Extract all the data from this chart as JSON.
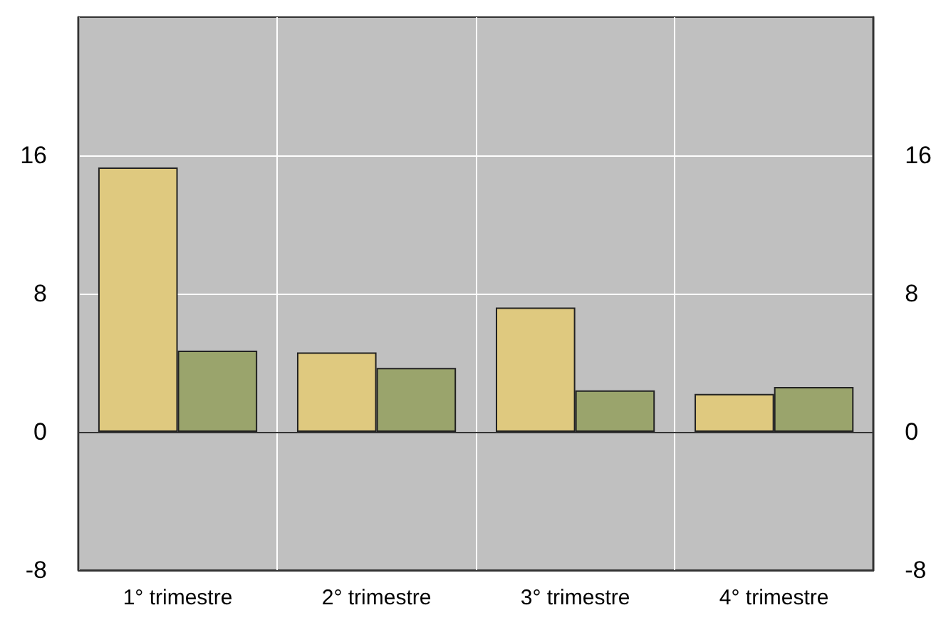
{
  "chart_data": {
    "type": "bar",
    "categories": [
      "1° trimestre",
      "2° trimestre",
      "3° trimestre",
      "4° trimestre"
    ],
    "series": [
      {
        "color": "#dfc97f",
        "values": [
          15.3,
          4.6,
          7.2,
          2.2
        ]
      },
      {
        "color": "#9aa46c",
        "values": [
          4.7,
          3.7,
          2.4,
          2.6
        ]
      }
    ],
    "ylim": [
      -8,
      24
    ],
    "yticks": [
      -8,
      0,
      8,
      16
    ],
    "y2lim": [
      -8,
      24
    ],
    "y2ticks": [
      -8,
      0,
      8,
      16
    ],
    "grid": true,
    "ref_lines": [
      {
        "axis": "y",
        "value": 0,
        "color": "#333333"
      }
    ]
  }
}
